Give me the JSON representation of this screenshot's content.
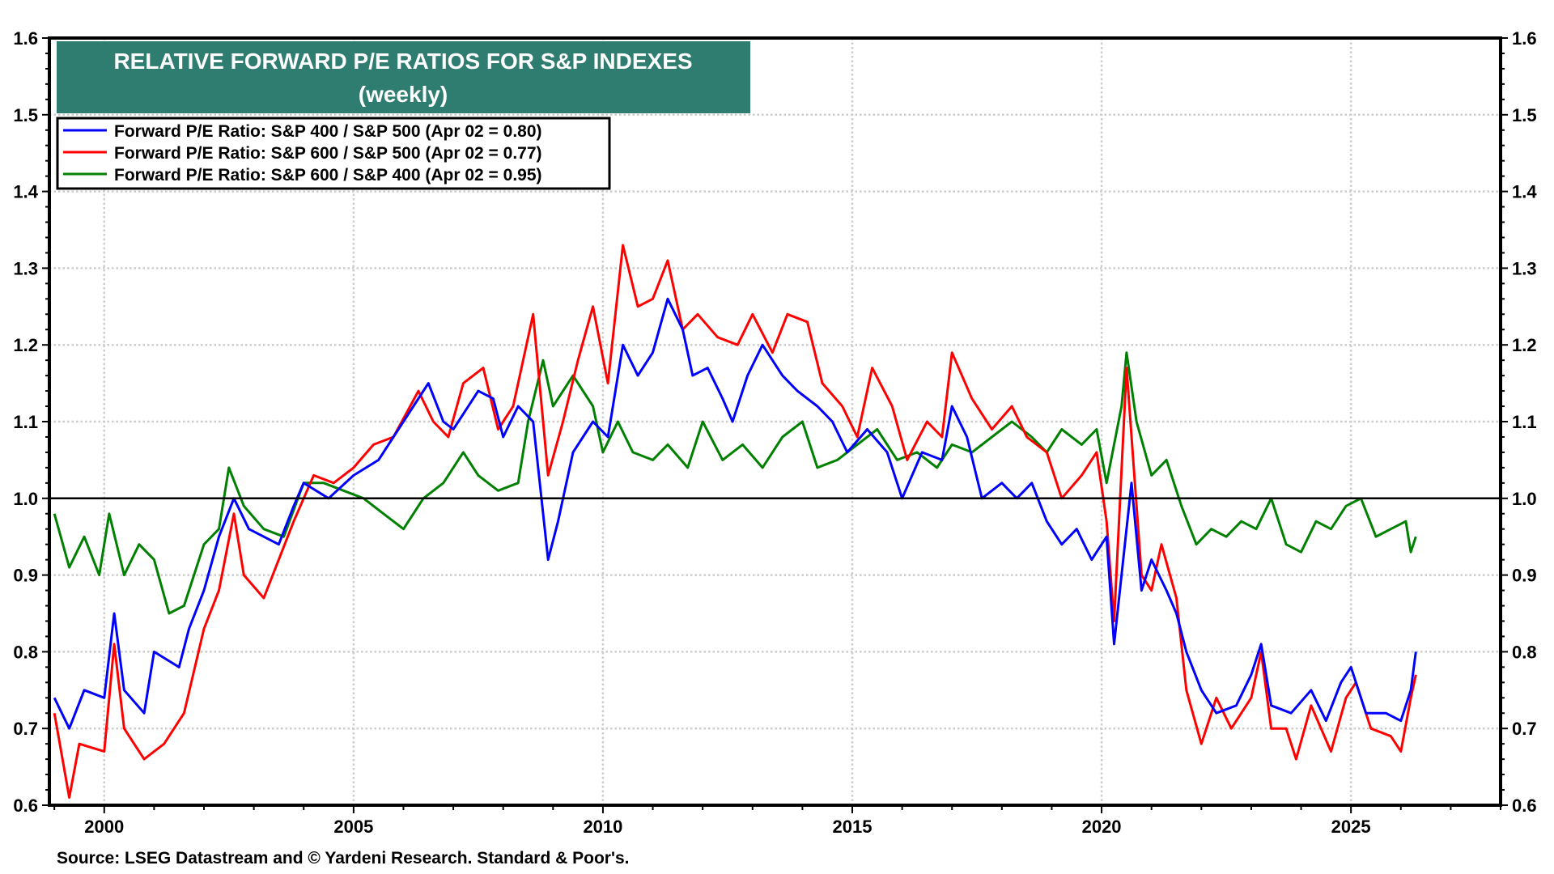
{
  "chart_data": {
    "type": "line",
    "title": "RELATIVE FORWARD P/E RATIOS FOR S&P INDEXES",
    "subtitle": "(weekly)",
    "source": "Source: LSEG Datastream and © Yardeni Research. Standard & Poor's.",
    "xlabel": "",
    "ylabel": "",
    "xlim": [
      1998.9,
      2028
    ],
    "ylim": [
      0.6,
      1.6
    ],
    "x_ticks": [
      "2000",
      "2005",
      "2010",
      "2015",
      "2020",
      "2025"
    ],
    "y_ticks": [
      "0.6",
      "0.7",
      "0.8",
      "0.9",
      "1.0",
      "1.1",
      "1.2",
      "1.3",
      "1.4",
      "1.5",
      "1.6"
    ],
    "reference_line": 1.0,
    "grid": true,
    "legend_position": "top-left",
    "colors": {
      "title_bg": "#2f7d70",
      "series_1": "#0000ff",
      "series_2": "#ff0000",
      "series_3": "#008000"
    },
    "series": [
      {
        "name": "Forward P/E Ratio: S&P 400 / S&P 500 (Apr 02 = 0.80)",
        "points": [
          [
            1999.0,
            0.74
          ],
          [
            1999.3,
            0.7
          ],
          [
            1999.6,
            0.75
          ],
          [
            2000.0,
            0.74
          ],
          [
            2000.2,
            0.85
          ],
          [
            2000.4,
            0.75
          ],
          [
            2000.8,
            0.72
          ],
          [
            2001.0,
            0.8
          ],
          [
            2001.5,
            0.78
          ],
          [
            2001.7,
            0.83
          ],
          [
            2002.0,
            0.88
          ],
          [
            2002.3,
            0.95
          ],
          [
            2002.6,
            1.0
          ],
          [
            2002.9,
            0.96
          ],
          [
            2003.2,
            0.95
          ],
          [
            2003.5,
            0.94
          ],
          [
            2003.8,
            0.99
          ],
          [
            2004.0,
            1.02
          ],
          [
            2004.5,
            1.0
          ],
          [
            2005.0,
            1.03
          ],
          [
            2005.5,
            1.05
          ],
          [
            2005.8,
            1.08
          ],
          [
            2006.2,
            1.12
          ],
          [
            2006.5,
            1.15
          ],
          [
            2006.8,
            1.1
          ],
          [
            2007.0,
            1.09
          ],
          [
            2007.5,
            1.14
          ],
          [
            2007.8,
            1.13
          ],
          [
            2008.0,
            1.08
          ],
          [
            2008.3,
            1.12
          ],
          [
            2008.6,
            1.1
          ],
          [
            2008.9,
            0.92
          ],
          [
            2009.1,
            0.97
          ],
          [
            2009.4,
            1.06
          ],
          [
            2009.8,
            1.1
          ],
          [
            2010.1,
            1.08
          ],
          [
            2010.4,
            1.2
          ],
          [
            2010.7,
            1.16
          ],
          [
            2011.0,
            1.19
          ],
          [
            2011.3,
            1.26
          ],
          [
            2011.6,
            1.22
          ],
          [
            2011.8,
            1.16
          ],
          [
            2012.1,
            1.17
          ],
          [
            2012.4,
            1.13
          ],
          [
            2012.6,
            1.1
          ],
          [
            2012.9,
            1.16
          ],
          [
            2013.2,
            1.2
          ],
          [
            2013.6,
            1.16
          ],
          [
            2013.9,
            1.14
          ],
          [
            2014.3,
            1.12
          ],
          [
            2014.6,
            1.1
          ],
          [
            2014.9,
            1.06
          ],
          [
            2015.3,
            1.09
          ],
          [
            2015.7,
            1.06
          ],
          [
            2016.0,
            1.0
          ],
          [
            2016.4,
            1.06
          ],
          [
            2016.8,
            1.05
          ],
          [
            2017.0,
            1.12
          ],
          [
            2017.3,
            1.08
          ],
          [
            2017.6,
            1.0
          ],
          [
            2018.0,
            1.02
          ],
          [
            2018.3,
            1.0
          ],
          [
            2018.6,
            1.02
          ],
          [
            2018.9,
            0.97
          ],
          [
            2019.2,
            0.94
          ],
          [
            2019.5,
            0.96
          ],
          [
            2019.8,
            0.92
          ],
          [
            2020.1,
            0.95
          ],
          [
            2020.25,
            0.81
          ],
          [
            2020.4,
            0.9
          ],
          [
            2020.6,
            1.02
          ],
          [
            2020.8,
            0.88
          ],
          [
            2021.0,
            0.92
          ],
          [
            2021.3,
            0.88
          ],
          [
            2021.5,
            0.85
          ],
          [
            2021.7,
            0.8
          ],
          [
            2022.0,
            0.75
          ],
          [
            2022.3,
            0.72
          ],
          [
            2022.7,
            0.73
          ],
          [
            2023.0,
            0.77
          ],
          [
            2023.2,
            0.81
          ],
          [
            2023.4,
            0.73
          ],
          [
            2023.8,
            0.72
          ],
          [
            2024.2,
            0.75
          ],
          [
            2024.5,
            0.71
          ],
          [
            2024.8,
            0.76
          ],
          [
            2025.0,
            0.78
          ],
          [
            2025.3,
            0.72
          ],
          [
            2025.7,
            0.72
          ],
          [
            2026.0,
            0.71
          ],
          [
            2026.2,
            0.75
          ],
          [
            2026.3,
            0.8
          ]
        ]
      },
      {
        "name": "Forward P/E Ratio: S&P 600 / S&P 500 (Apr 02 = 0.77)",
        "points": [
          [
            1999.0,
            0.72
          ],
          [
            1999.3,
            0.61
          ],
          [
            1999.5,
            0.68
          ],
          [
            2000.0,
            0.67
          ],
          [
            2000.2,
            0.81
          ],
          [
            2000.4,
            0.7
          ],
          [
            2000.8,
            0.66
          ],
          [
            2001.2,
            0.68
          ],
          [
            2001.6,
            0.72
          ],
          [
            2002.0,
            0.83
          ],
          [
            2002.3,
            0.88
          ],
          [
            2002.6,
            0.98
          ],
          [
            2002.8,
            0.9
          ],
          [
            2003.2,
            0.87
          ],
          [
            2003.5,
            0.92
          ],
          [
            2003.8,
            0.97
          ],
          [
            2004.2,
            1.03
          ],
          [
            2004.6,
            1.02
          ],
          [
            2005.0,
            1.04
          ],
          [
            2005.4,
            1.07
          ],
          [
            2005.8,
            1.08
          ],
          [
            2006.3,
            1.14
          ],
          [
            2006.6,
            1.1
          ],
          [
            2006.9,
            1.08
          ],
          [
            2007.2,
            1.15
          ],
          [
            2007.6,
            1.17
          ],
          [
            2007.9,
            1.09
          ],
          [
            2008.2,
            1.12
          ],
          [
            2008.6,
            1.24
          ],
          [
            2008.9,
            1.03
          ],
          [
            2009.2,
            1.1
          ],
          [
            2009.5,
            1.18
          ],
          [
            2009.8,
            1.25
          ],
          [
            2010.1,
            1.15
          ],
          [
            2010.4,
            1.33
          ],
          [
            2010.7,
            1.25
          ],
          [
            2011.0,
            1.26
          ],
          [
            2011.3,
            1.31
          ],
          [
            2011.6,
            1.22
          ],
          [
            2011.9,
            1.24
          ],
          [
            2012.3,
            1.21
          ],
          [
            2012.7,
            1.2
          ],
          [
            2013.0,
            1.24
          ],
          [
            2013.4,
            1.19
          ],
          [
            2013.7,
            1.24
          ],
          [
            2014.1,
            1.23
          ],
          [
            2014.4,
            1.15
          ],
          [
            2014.8,
            1.12
          ],
          [
            2015.1,
            1.08
          ],
          [
            2015.4,
            1.17
          ],
          [
            2015.8,
            1.12
          ],
          [
            2016.1,
            1.05
          ],
          [
            2016.5,
            1.1
          ],
          [
            2016.8,
            1.08
          ],
          [
            2017.0,
            1.19
          ],
          [
            2017.4,
            1.13
          ],
          [
            2017.8,
            1.09
          ],
          [
            2018.2,
            1.12
          ],
          [
            2018.5,
            1.08
          ],
          [
            2018.9,
            1.06
          ],
          [
            2019.2,
            1.0
          ],
          [
            2019.6,
            1.03
          ],
          [
            2019.9,
            1.06
          ],
          [
            2020.1,
            0.97
          ],
          [
            2020.25,
            0.84
          ],
          [
            2020.5,
            1.17
          ],
          [
            2020.8,
            0.9
          ],
          [
            2021.0,
            0.88
          ],
          [
            2021.2,
            0.94
          ],
          [
            2021.5,
            0.87
          ],
          [
            2021.7,
            0.75
          ],
          [
            2022.0,
            0.68
          ],
          [
            2022.3,
            0.74
          ],
          [
            2022.6,
            0.7
          ],
          [
            2023.0,
            0.74
          ],
          [
            2023.2,
            0.8
          ],
          [
            2023.4,
            0.7
          ],
          [
            2023.7,
            0.7
          ],
          [
            2023.9,
            0.66
          ],
          [
            2024.2,
            0.73
          ],
          [
            2024.6,
            0.67
          ],
          [
            2024.9,
            0.74
          ],
          [
            2025.1,
            0.76
          ],
          [
            2025.4,
            0.7
          ],
          [
            2025.8,
            0.69
          ],
          [
            2026.0,
            0.67
          ],
          [
            2026.2,
            0.74
          ],
          [
            2026.3,
            0.77
          ]
        ]
      },
      {
        "name": "Forward P/E Ratio: S&P 600 / S&P 400 (Apr 02 = 0.95)",
        "points": [
          [
            1999.0,
            0.98
          ],
          [
            1999.3,
            0.91
          ],
          [
            1999.6,
            0.95
          ],
          [
            1999.9,
            0.9
          ],
          [
            2000.1,
            0.98
          ],
          [
            2000.4,
            0.9
          ],
          [
            2000.7,
            0.94
          ],
          [
            2001.0,
            0.92
          ],
          [
            2001.3,
            0.85
          ],
          [
            2001.6,
            0.86
          ],
          [
            2002.0,
            0.94
          ],
          [
            2002.3,
            0.96
          ],
          [
            2002.5,
            1.04
          ],
          [
            2002.8,
            0.99
          ],
          [
            2003.2,
            0.96
          ],
          [
            2003.6,
            0.95
          ],
          [
            2004.0,
            1.02
          ],
          [
            2004.4,
            1.02
          ],
          [
            2004.8,
            1.01
          ],
          [
            2005.2,
            1.0
          ],
          [
            2005.6,
            0.98
          ],
          [
            2006.0,
            0.96
          ],
          [
            2006.4,
            1.0
          ],
          [
            2006.8,
            1.02
          ],
          [
            2007.2,
            1.06
          ],
          [
            2007.5,
            1.03
          ],
          [
            2007.9,
            1.01
          ],
          [
            2008.3,
            1.02
          ],
          [
            2008.5,
            1.1
          ],
          [
            2008.8,
            1.18
          ],
          [
            2009.0,
            1.12
          ],
          [
            2009.4,
            1.16
          ],
          [
            2009.8,
            1.12
          ],
          [
            2010.0,
            1.06
          ],
          [
            2010.3,
            1.1
          ],
          [
            2010.6,
            1.06
          ],
          [
            2011.0,
            1.05
          ],
          [
            2011.3,
            1.07
          ],
          [
            2011.7,
            1.04
          ],
          [
            2012.0,
            1.1
          ],
          [
            2012.4,
            1.05
          ],
          [
            2012.8,
            1.07
          ],
          [
            2013.2,
            1.04
          ],
          [
            2013.6,
            1.08
          ],
          [
            2014.0,
            1.1
          ],
          [
            2014.3,
            1.04
          ],
          [
            2014.7,
            1.05
          ],
          [
            2015.1,
            1.07
          ],
          [
            2015.5,
            1.09
          ],
          [
            2015.9,
            1.05
          ],
          [
            2016.3,
            1.06
          ],
          [
            2016.7,
            1.04
          ],
          [
            2017.0,
            1.07
          ],
          [
            2017.4,
            1.06
          ],
          [
            2017.8,
            1.08
          ],
          [
            2018.2,
            1.1
          ],
          [
            2018.6,
            1.08
          ],
          [
            2018.9,
            1.06
          ],
          [
            2019.2,
            1.09
          ],
          [
            2019.6,
            1.07
          ],
          [
            2019.9,
            1.09
          ],
          [
            2020.1,
            1.02
          ],
          [
            2020.4,
            1.12
          ],
          [
            2020.5,
            1.19
          ],
          [
            2020.7,
            1.1
          ],
          [
            2021.0,
            1.03
          ],
          [
            2021.3,
            1.05
          ],
          [
            2021.6,
            0.99
          ],
          [
            2021.9,
            0.94
          ],
          [
            2022.2,
            0.96
          ],
          [
            2022.5,
            0.95
          ],
          [
            2022.8,
            0.97
          ],
          [
            2023.1,
            0.96
          ],
          [
            2023.4,
            1.0
          ],
          [
            2023.7,
            0.94
          ],
          [
            2024.0,
            0.93
          ],
          [
            2024.3,
            0.97
          ],
          [
            2024.6,
            0.96
          ],
          [
            2024.9,
            0.99
          ],
          [
            2025.2,
            1.0
          ],
          [
            2025.5,
            0.95
          ],
          [
            2025.8,
            0.96
          ],
          [
            2026.1,
            0.97
          ],
          [
            2026.2,
            0.93
          ],
          [
            2026.3,
            0.95
          ]
        ]
      }
    ]
  }
}
